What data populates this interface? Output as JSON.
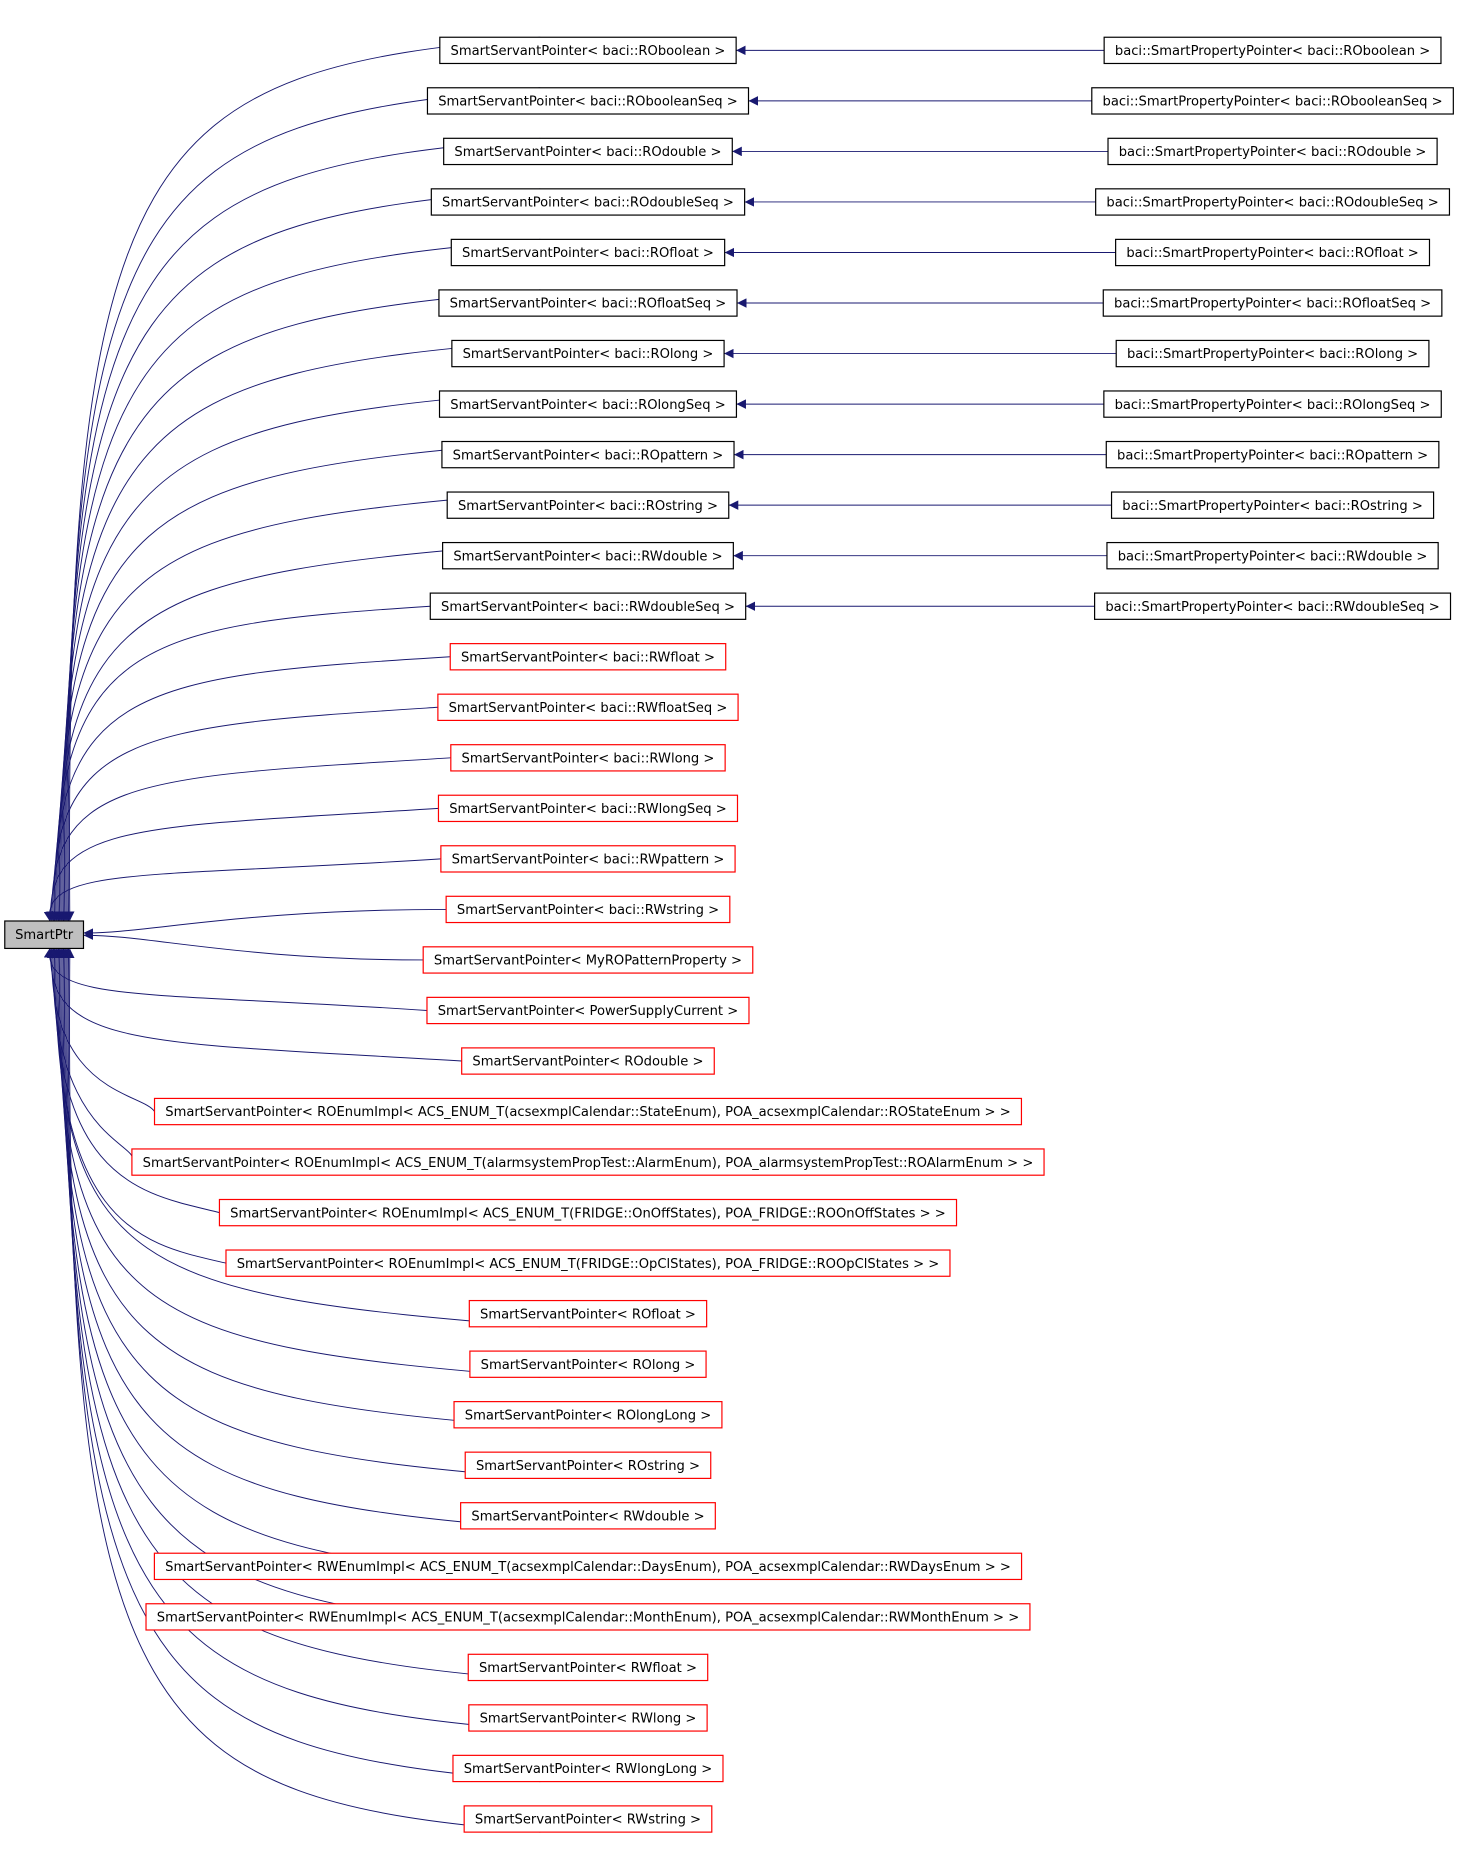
{
  "root": {
    "label": "SmartPtr",
    "fill": "#bfbfbf"
  },
  "edge_color": "#191970",
  "nodes": [
    {
      "label": "SmartServantPointer< baci::ROboolean >",
      "border": "#000000",
      "derived": {
        "label": "baci::SmartPropertyPointer< baci::ROboolean >"
      }
    },
    {
      "label": "SmartServantPointer< baci::RObooleanSeq >",
      "border": "#000000",
      "derived": {
        "label": "baci::SmartPropertyPointer< baci::RObooleanSeq >"
      }
    },
    {
      "label": "SmartServantPointer< baci::ROdouble >",
      "border": "#000000",
      "derived": {
        "label": "baci::SmartPropertyPointer< baci::ROdouble >"
      }
    },
    {
      "label": "SmartServantPointer< baci::ROdoubleSeq >",
      "border": "#000000",
      "derived": {
        "label": "baci::SmartPropertyPointer< baci::ROdoubleSeq >"
      }
    },
    {
      "label": "SmartServantPointer< baci::ROfloat >",
      "border": "#000000",
      "derived": {
        "label": "baci::SmartPropertyPointer< baci::ROfloat >"
      }
    },
    {
      "label": "SmartServantPointer< baci::ROfloatSeq >",
      "border": "#000000",
      "derived": {
        "label": "baci::SmartPropertyPointer< baci::ROfloatSeq >"
      }
    },
    {
      "label": "SmartServantPointer< baci::ROlong >",
      "border": "#000000",
      "derived": {
        "label": "baci::SmartPropertyPointer< baci::ROlong >"
      }
    },
    {
      "label": "SmartServantPointer< baci::ROlongSeq >",
      "border": "#000000",
      "derived": {
        "label": "baci::SmartPropertyPointer< baci::ROlongSeq >"
      }
    },
    {
      "label": "SmartServantPointer< baci::ROpattern >",
      "border": "#000000",
      "derived": {
        "label": "baci::SmartPropertyPointer< baci::ROpattern >"
      }
    },
    {
      "label": "SmartServantPointer< baci::ROstring >",
      "border": "#000000",
      "derived": {
        "label": "baci::SmartPropertyPointer< baci::ROstring >"
      }
    },
    {
      "label": "SmartServantPointer< baci::RWdouble >",
      "border": "#000000",
      "derived": {
        "label": "baci::SmartPropertyPointer< baci::RWdouble >"
      }
    },
    {
      "label": "SmartServantPointer< baci::RWdoubleSeq >",
      "border": "#000000",
      "derived": {
        "label": "baci::SmartPropertyPointer< baci::RWdoubleSeq >"
      }
    },
    {
      "label": "SmartServantPointer< baci::RWfloat >",
      "border": "#ff0000"
    },
    {
      "label": "SmartServantPointer< baci::RWfloatSeq >",
      "border": "#ff0000"
    },
    {
      "label": "SmartServantPointer< baci::RWlong >",
      "border": "#ff0000"
    },
    {
      "label": "SmartServantPointer< baci::RWlongSeq >",
      "border": "#ff0000"
    },
    {
      "label": "SmartServantPointer< baci::RWpattern >",
      "border": "#ff0000"
    },
    {
      "label": "SmartServantPointer< baci::RWstring >",
      "border": "#ff0000"
    },
    {
      "label": "SmartServantPointer< MyROPatternProperty >",
      "border": "#ff0000"
    },
    {
      "label": "SmartServantPointer< PowerSupplyCurrent >",
      "border": "#ff0000"
    },
    {
      "label": "SmartServantPointer< ROdouble >",
      "border": "#ff0000"
    },
    {
      "label": "SmartServantPointer< ROEnumImpl< ACS_ENUM_T(acsexmplCalendar::StateEnum), POA_acsexmplCalendar::ROStateEnum > >",
      "border": "#ff0000"
    },
    {
      "label": "SmartServantPointer< ROEnumImpl< ACS_ENUM_T(alarmsystemPropTest::AlarmEnum), POA_alarmsystemPropTest::ROAlarmEnum > >",
      "border": "#ff0000"
    },
    {
      "label": "SmartServantPointer< ROEnumImpl< ACS_ENUM_T(FRIDGE::OnOffStates), POA_FRIDGE::ROOnOffStates > >",
      "border": "#ff0000"
    },
    {
      "label": "SmartServantPointer< ROEnumImpl< ACS_ENUM_T(FRIDGE::OpClStates), POA_FRIDGE::ROOpClStates > >",
      "border": "#ff0000"
    },
    {
      "label": "SmartServantPointer< ROfloat >",
      "border": "#ff0000"
    },
    {
      "label": "SmartServantPointer< ROlong >",
      "border": "#ff0000"
    },
    {
      "label": "SmartServantPointer< ROlongLong >",
      "border": "#ff0000"
    },
    {
      "label": "SmartServantPointer< ROstring >",
      "border": "#ff0000"
    },
    {
      "label": "SmartServantPointer< RWdouble >",
      "border": "#ff0000"
    },
    {
      "label": "SmartServantPointer< RWEnumImpl< ACS_ENUM_T(acsexmplCalendar::DaysEnum), POA_acsexmplCalendar::RWDaysEnum > >",
      "border": "#ff0000"
    },
    {
      "label": "SmartServantPointer< RWEnumImpl< ACS_ENUM_T(acsexmplCalendar::MonthEnum), POA_acsexmplCalendar::RWMonthEnum > >",
      "border": "#ff0000"
    },
    {
      "label": "SmartServantPointer< RWfloat >",
      "border": "#ff0000"
    },
    {
      "label": "SmartServantPointer< RWlong >",
      "border": "#ff0000"
    },
    {
      "label": "SmartServantPointer< RWlongLong >",
      "border": "#ff0000"
    },
    {
      "label": "SmartServantPointer< RWstring >",
      "border": "#ff0000"
    }
  ]
}
